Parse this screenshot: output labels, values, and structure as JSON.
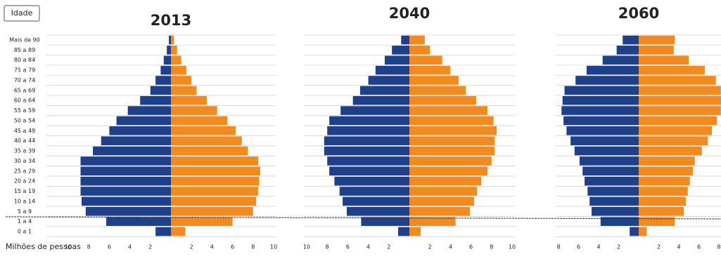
{
  "chart_data": [
    {
      "type": "pyramid",
      "title": "2013",
      "ylabel": "Idade",
      "xlabel": "Milhões de pessoas",
      "categories": [
        "Mais de 90",
        "85 a 89",
        "80 a 84",
        "75 a 79",
        "70 a 74",
        "65 a 69",
        "60 a 64",
        "55 a 59",
        "50 a 54",
        "45 a 49",
        "40 a 44",
        "35 a 39",
        "30 a 34",
        "25 a 29",
        "20 a 24",
        "15 a 19",
        "10 a 14",
        "5 a 9",
        "1 a 4",
        "0 a 1"
      ],
      "series": [
        {
          "color": "#1e3f8a",
          "side": "left",
          "values": [
            0.2,
            0.4,
            0.7,
            1.0,
            1.5,
            2.0,
            3.0,
            4.2,
            5.3,
            6.0,
            6.8,
            7.6,
            8.8,
            8.8,
            8.8,
            8.8,
            8.7,
            8.3,
            6.3,
            1.5
          ]
        },
        {
          "color": "#f28a1e",
          "side": "right",
          "values": [
            0.3,
            0.6,
            1.0,
            1.5,
            2.0,
            2.5,
            3.5,
            4.5,
            5.5,
            6.3,
            6.9,
            7.5,
            8.5,
            8.7,
            8.6,
            8.5,
            8.3,
            8.0,
            6.0,
            1.4
          ]
        }
      ],
      "xlim": [
        0,
        10
      ],
      "xticks": [
        2,
        4,
        6,
        8,
        10
      ],
      "grid": true
    },
    {
      "type": "pyramid",
      "title": "2040",
      "series": [
        {
          "color": "#1e3f8a",
          "side": "left",
          "values": [
            0.8,
            1.7,
            2.4,
            3.3,
            4.0,
            4.8,
            5.5,
            6.7,
            7.8,
            8.0,
            8.3,
            8.3,
            8.0,
            7.8,
            7.3,
            6.8,
            6.5,
            6.1,
            4.7,
            1.1
          ]
        },
        {
          "color": "#f28a1e",
          "side": "right",
          "values": [
            1.5,
            2.0,
            3.2,
            4.0,
            4.8,
            5.5,
            6.5,
            7.6,
            8.2,
            8.5,
            8.3,
            8.3,
            8.0,
            7.6,
            7.0,
            6.6,
            6.3,
            5.9,
            4.5,
            1.1
          ]
        }
      ],
      "xlim": [
        0,
        10
      ],
      "xticks": [
        2,
        4,
        6,
        8,
        10
      ],
      "grid": true
    },
    {
      "type": "pyramid",
      "title": "2060",
      "series": [
        {
          "color": "#1e3f8a",
          "side": "left",
          "values": [
            1.6,
            2.2,
            3.6,
            5.2,
            6.3,
            7.4,
            7.6,
            7.7,
            7.5,
            7.2,
            6.8,
            6.4,
            5.9,
            5.6,
            5.4,
            5.1,
            4.9,
            4.7,
            3.8,
            0.9
          ]
        },
        {
          "color": "#f28a1e",
          "side": "right",
          "values": [
            3.6,
            3.5,
            5.0,
            6.6,
            7.7,
            8.2,
            8.3,
            8.2,
            7.8,
            7.3,
            6.9,
            6.3,
            5.6,
            5.4,
            5.1,
            4.9,
            4.7,
            4.5,
            3.6,
            0.8
          ]
        }
      ],
      "xlim": [
        0,
        8
      ],
      "xticks": [
        2,
        4,
        6,
        8
      ],
      "grid": true
    }
  ]
}
